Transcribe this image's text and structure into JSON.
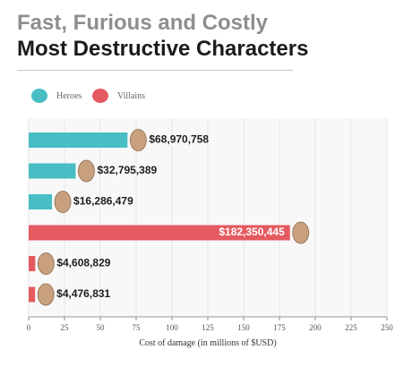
{
  "header": {
    "title": "Fast, Furious and Costly",
    "subtitle": "Most Destructive Characters"
  },
  "legend": {
    "items": [
      {
        "label": "Heroes",
        "color": "#48bec4"
      },
      {
        "label": "Villains",
        "color": "#e45a60"
      }
    ]
  },
  "chart_data": {
    "type": "bar",
    "orientation": "horizontal",
    "title": "Fast, Furious and Costly",
    "subtitle": "Most Destructive Characters",
    "xlabel": "Cost of damage (in millions of $USD)",
    "ylabel": "",
    "xlim": [
      0,
      250
    ],
    "xticks": [
      0,
      25,
      50,
      75,
      100,
      125,
      150,
      175,
      200,
      225,
      250
    ],
    "grid": true,
    "legend_position": "top-left",
    "series": [
      {
        "name": "Heroes",
        "color": "#48bec4"
      },
      {
        "name": "Villains",
        "color": "#e45a60"
      }
    ],
    "bars": [
      {
        "value": 68.970758,
        "label": "$68,970,758",
        "group": "Heroes",
        "label_inside": false
      },
      {
        "value": 32.795389,
        "label": "$32,795,389",
        "group": "Heroes",
        "label_inside": false
      },
      {
        "value": 16.286479,
        "label": "$16,286,479",
        "group": "Heroes",
        "label_inside": false
      },
      {
        "value": 182.350445,
        "label": "$182,350,445",
        "group": "Villains",
        "label_inside": true
      },
      {
        "value": 4.608829,
        "label": "$4,608,829",
        "group": "Villains",
        "label_inside": false
      },
      {
        "value": 4.476831,
        "label": "$4,476,831",
        "group": "Villains",
        "label_inside": false
      }
    ]
  }
}
